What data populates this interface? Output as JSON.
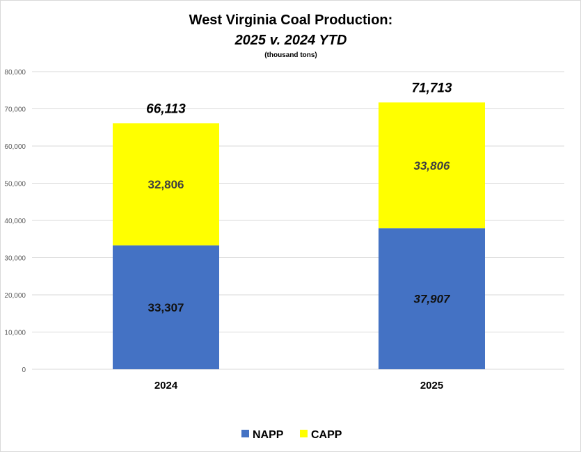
{
  "chart_data": {
    "type": "bar",
    "stacked": true,
    "title": "West Virginia Coal Production:",
    "subtitle": "2025 v. 2024 YTD",
    "units_note": "(thousand tons)",
    "categories": [
      "2024",
      "2025"
    ],
    "series": [
      {
        "name": "NAPP",
        "color": "#4472C4",
        "values": [
          33307,
          37907
        ],
        "labels": [
          "33,307",
          "37,907"
        ]
      },
      {
        "name": "CAPP",
        "color": "#FFFF00",
        "values": [
          32806,
          33806
        ],
        "labels": [
          "32,806",
          "33,806"
        ]
      }
    ],
    "totals": [
      "66,113",
      "71,713"
    ],
    "ylim": [
      0,
      80000
    ],
    "yticks": [
      "0",
      "10,000",
      "20,000",
      "30,000",
      "40,000",
      "50,000",
      "60,000",
      "70,000",
      "80,000"
    ],
    "grid": true,
    "legend": "bottom"
  }
}
